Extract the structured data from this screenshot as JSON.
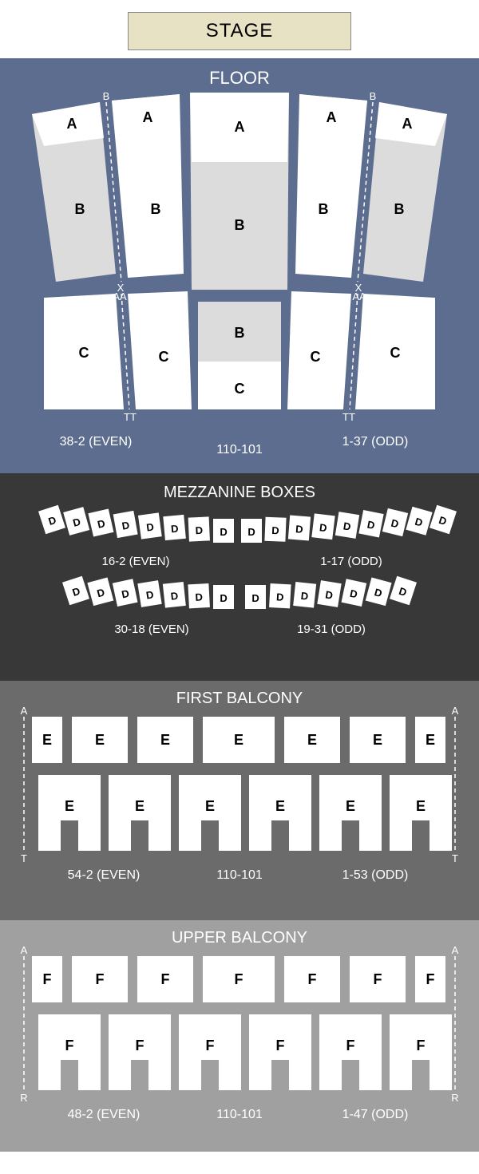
{
  "stage": {
    "label": "STAGE",
    "bg": "#e8e2c4"
  },
  "floor": {
    "title": "FLOOR",
    "bg": "#5c6d8f",
    "shade": "#dcdcdc",
    "white": "#ffffff",
    "rowMarkers": [
      "B",
      "X",
      "AA",
      "TT"
    ],
    "rowMarkers2": [
      "B",
      "X",
      "AA",
      "TT"
    ],
    "sections": {
      "topLeft1": "A",
      "topLeft2": "A",
      "topCenter": "A",
      "topRight1": "A",
      "topRight2": "A",
      "midLeft1": "B",
      "midLeft2": "B",
      "midCenter": "B",
      "midRight1": "B",
      "midRight2": "B",
      "botLeft1": "C",
      "botLeft2": "C",
      "botCenterTop": "B",
      "botCenterBot": "C",
      "botRight1": "C",
      "botRight2": "C"
    },
    "ranges": {
      "left": "38-2 (EVEN)",
      "center": "110-101",
      "right": "1-37 (ODD)"
    }
  },
  "mezzanine": {
    "title": "MEZZANINE BOXES",
    "bg": "#383838",
    "box": "#ffffff",
    "label": "D",
    "row1LeftCount": 8,
    "row1RightCount": 9,
    "row2LeftCount": 7,
    "row2RightCount": 7,
    "ranges": {
      "r1l": "16-2 (EVEN)",
      "r1r": "1-17 (ODD)",
      "r2l": "30-18 (EVEN)",
      "r2r": "19-31 (ODD)"
    }
  },
  "firstBalcony": {
    "title": "FIRST BALCONY",
    "bg": "#6b6b6b",
    "box": "#ffffff",
    "label": "E",
    "rowMarkers": {
      "top": "A",
      "bottom": "T"
    },
    "ranges": {
      "left": "54-2 (EVEN)",
      "center": "110-101",
      "right": "1-53 (ODD)"
    }
  },
  "upperBalcony": {
    "title": "UPPER BALCONY",
    "bg": "#a0a0a0",
    "box": "#ffffff",
    "label": "F",
    "rowMarkers": {
      "top": "A",
      "bottom": "R"
    },
    "ranges": {
      "left": "48-2 (EVEN)",
      "center": "110-101",
      "right": "1-47 (ODD)"
    }
  }
}
